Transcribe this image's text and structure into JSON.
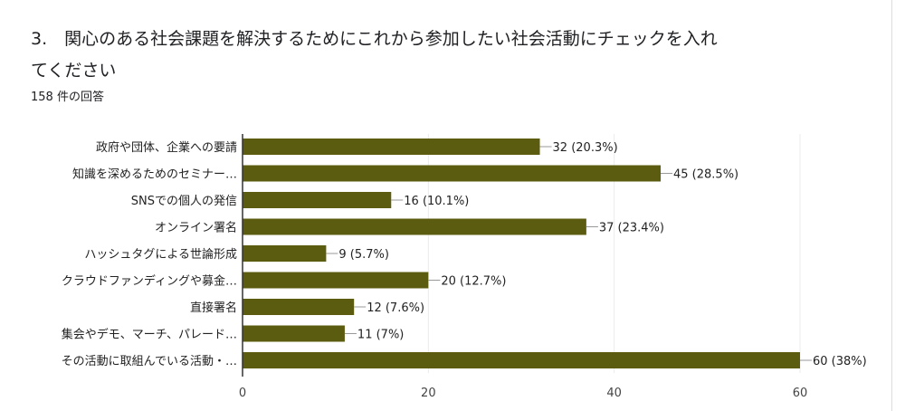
{
  "question": {
    "title": "3.　関心のある社会課題を解決するためにこれから参加したい社会活動にチェックを入れてください",
    "response_count": "158 件の回答"
  },
  "chart_data": {
    "type": "bar",
    "orientation": "horizontal",
    "categories": [
      "政府や団体、企業への要請",
      "知識を深めるためのセミナー…",
      "SNSでの個人の発信",
      "オンライン署名",
      "ハッシュタグによる世論形成",
      "クラウドファンディングや募金…",
      "直接署名",
      "集会やデモ、マーチ、パレード…",
      "その活動に取組んでいる活動・…"
    ],
    "values": [
      32,
      45,
      16,
      37,
      9,
      20,
      12,
      11,
      60
    ],
    "data_labels": [
      "32 (20.3%)",
      "45 (28.5%)",
      "16 (10.1%)",
      "37 (23.4%)",
      "9 (5.7%)",
      "20 (12.7%)",
      "12 (7.6%)",
      "11 (7%)",
      "60 (38%)"
    ],
    "xlim": [
      0,
      60
    ],
    "xticks": [
      "0",
      "20",
      "40",
      "60"
    ],
    "grid": true,
    "bar_color": "#5c5c10"
  }
}
